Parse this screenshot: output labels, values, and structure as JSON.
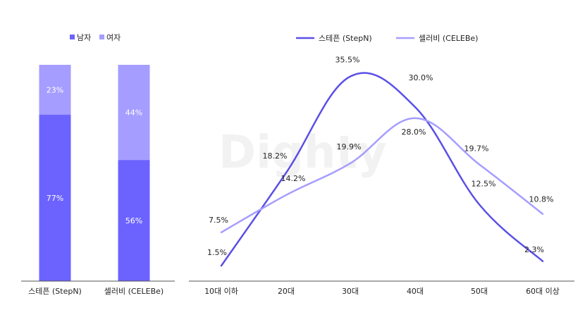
{
  "colors": {
    "male": "#6c63ff",
    "female": "#a59dff",
    "stepn": "#5a50e6",
    "celebe": "#a59dff",
    "axis": "#555555",
    "text": "#222222",
    "white": "#ffffff",
    "watermark": "#f2f2f2"
  },
  "watermark": "Dighty",
  "chart_data": [
    {
      "type": "bar",
      "stacked": true,
      "categories": [
        "스테픈 (StepN)",
        "셀러비 (CELEBe)"
      ],
      "series": [
        {
          "name": "남자",
          "values": [
            77,
            56
          ],
          "labels": [
            "77%",
            "56%"
          ]
        },
        {
          "name": "여자",
          "values": [
            23,
            44
          ],
          "labels": [
            "23%",
            "44%"
          ]
        }
      ],
      "ylim": [
        0,
        100
      ],
      "legend": "top-center"
    },
    {
      "type": "line",
      "categories": [
        "10대 이하",
        "20대",
        "30대",
        "40대",
        "50대",
        "60대 이상"
      ],
      "series": [
        {
          "name": "스테픈 (StepN)",
          "values": [
            1.5,
            18.2,
            35.5,
            30.0,
            12.5,
            2.3
          ],
          "labels": [
            "1.5%",
            "18.2%",
            "35.5%",
            "30.0%",
            "12.5%",
            "2.3%"
          ]
        },
        {
          "name": "셀러비 (CELEBe)",
          "values": [
            7.5,
            14.2,
            19.9,
            28.0,
            19.7,
            10.8
          ],
          "labels": [
            "7.5%",
            "14.2%",
            "19.9%",
            "28.0%",
            "19.7%",
            "10.8%"
          ]
        }
      ],
      "legend": "top-center"
    }
  ]
}
